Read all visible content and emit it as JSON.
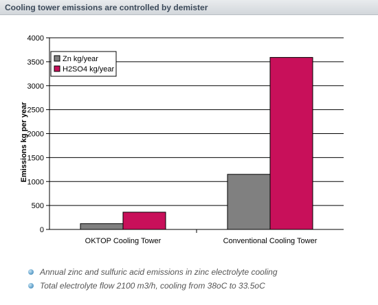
{
  "header": {
    "title": "Cooling tower emissions are controlled by demister"
  },
  "chart_data": {
    "type": "bar",
    "title": "",
    "xlabel": "",
    "ylabel": "Emissions kg per year",
    "ylim": [
      0,
      4000
    ],
    "yticks": [
      0,
      500,
      1000,
      1500,
      2000,
      2500,
      3000,
      3500,
      4000
    ],
    "grid": true,
    "legend_position": "top-left",
    "categories": [
      "OKTOP Cooling Tower",
      "Conventional Cooling Tower"
    ],
    "series": [
      {
        "name": "Zn kg/year",
        "color": "#808080",
        "values": [
          120,
          1150
        ]
      },
      {
        "name": "H2SO4 kg/year",
        "color": "#c8105a",
        "values": [
          360,
          3590
        ]
      }
    ]
  },
  "notes": [
    "Annual zinc and sulfuric acid emissions in  zinc electrolyte cooling",
    "Total electrolyte flow 2100 m3/h, cooling from 38oC to 33.5oC"
  ],
  "colors": {
    "bullet": "#4a8dc0",
    "header_text": "#3c4a5a"
  }
}
